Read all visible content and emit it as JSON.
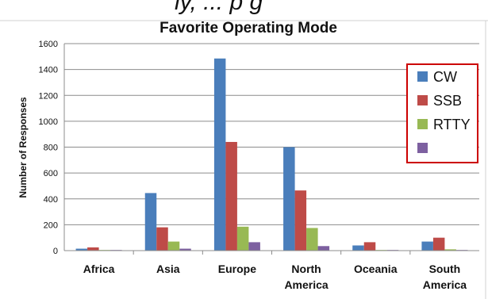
{
  "header_fragment": "ly, ... p g",
  "chart_data": {
    "type": "bar",
    "title": "Favorite Operating Mode",
    "xlabel": "",
    "ylabel": "Number of Responses",
    "ylim": [
      0,
      1600
    ],
    "yticks": [
      0,
      200,
      400,
      600,
      800,
      1000,
      1200,
      1400,
      1600
    ],
    "grid": true,
    "legend_position": "right",
    "categories": [
      [
        "Africa"
      ],
      [
        "Asia"
      ],
      [
        "Europe"
      ],
      [
        "North",
        "America"
      ],
      [
        "Oceania"
      ],
      [
        "South",
        "America"
      ]
    ],
    "series": [
      {
        "name": "CW",
        "color": "#4a7ebb",
        "values": [
          15,
          445,
          1485,
          800,
          40,
          70
        ]
      },
      {
        "name": "SSB",
        "color": "#be4b48",
        "values": [
          25,
          180,
          840,
          465,
          65,
          100
        ]
      },
      {
        "name": "RTTY",
        "color": "#98b954",
        "values": [
          5,
          70,
          185,
          175,
          5,
          10
        ]
      },
      {
        "name": "",
        "color": "#7d60a0",
        "values": [
          5,
          15,
          65,
          35,
          5,
          5
        ]
      }
    ]
  }
}
